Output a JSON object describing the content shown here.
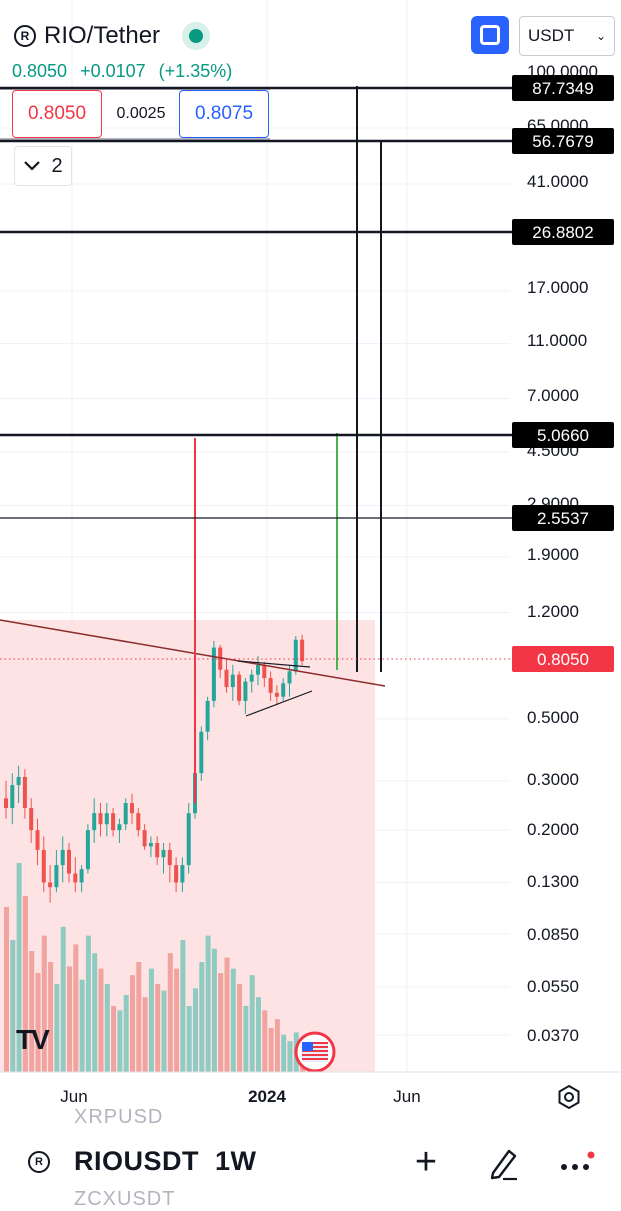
{
  "header": {
    "pair_title": "RIO/Tether",
    "last_price": "0.8050",
    "change": "+0.0107",
    "change_pct": "(+1.35%)",
    "currency": "USDT",
    "icons": {
      "coin": "rio-coin-icon",
      "live": "live-status-dot",
      "fullscreen": "fullscreen-icon",
      "dropdown": "chevron-down-icon"
    }
  },
  "order": {
    "sell_price": "0.8050",
    "spread": "0.0025",
    "buy_price": "0.8075",
    "collapse_count": "2"
  },
  "bottom": {
    "ghost_above": "XRPUSD",
    "symbol": "RIOUSDT",
    "interval": "1W",
    "ghost_below": "ZCXUSDT"
  },
  "colors": {
    "up": "#26a69a",
    "down": "#ef5350",
    "accent": "#2962ff",
    "shade": "#fde3e3",
    "price_label": "#f23645",
    "vol_up": "#8fcbc1",
    "vol_down": "#f0a39f"
  },
  "chart_data": {
    "type": "candlestick",
    "interval": "1W",
    "y_scale": "log",
    "y_ticks": [
      "65.0000",
      "41.0000",
      "17.0000",
      "11.0000",
      "7.0000",
      "4.5000",
      "2.9000",
      "1.9000",
      "1.2000",
      "0.5000",
      "0.3000",
      "0.2000",
      "0.1300",
      "0.0850",
      "0.0550",
      "0.0370"
    ],
    "y_tick_values": [
      65,
      41,
      17,
      11,
      7,
      4.5,
      2.9,
      1.9,
      1.2,
      0.5,
      0.3,
      0.2,
      0.13,
      0.085,
      0.055,
      0.037
    ],
    "top_partial_tick": "100.0000",
    "x_ticks": [
      "Jun",
      "2024",
      "Jun"
    ],
    "level_labels": [
      "87.7349",
      "56.7679",
      "26.8802",
      "5.0660",
      "2.5537"
    ],
    "level_values": [
      87.7349,
      56.7679,
      26.8802,
      5.066,
      2.5537
    ],
    "current_price_label": "0.8050",
    "current_price": 0.805,
    "candles": [
      [
        0.26,
        0.3,
        0.22,
        0.24
      ],
      [
        0.24,
        0.32,
        0.21,
        0.29
      ],
      [
        0.29,
        0.34,
        0.25,
        0.31
      ],
      [
        0.31,
        0.33,
        0.22,
        0.24
      ],
      [
        0.24,
        0.26,
        0.18,
        0.2
      ],
      [
        0.2,
        0.22,
        0.15,
        0.17
      ],
      [
        0.17,
        0.19,
        0.12,
        0.13
      ],
      [
        0.13,
        0.15,
        0.11,
        0.125
      ],
      [
        0.125,
        0.17,
        0.12,
        0.15
      ],
      [
        0.15,
        0.19,
        0.13,
        0.17
      ],
      [
        0.17,
        0.18,
        0.13,
        0.14
      ],
      [
        0.14,
        0.16,
        0.12,
        0.13
      ],
      [
        0.13,
        0.15,
        0.12,
        0.145
      ],
      [
        0.145,
        0.21,
        0.14,
        0.2
      ],
      [
        0.2,
        0.26,
        0.18,
        0.23
      ],
      [
        0.23,
        0.25,
        0.19,
        0.21
      ],
      [
        0.21,
        0.25,
        0.19,
        0.23
      ],
      [
        0.23,
        0.24,
        0.19,
        0.2
      ],
      [
        0.2,
        0.22,
        0.18,
        0.21
      ],
      [
        0.21,
        0.26,
        0.2,
        0.25
      ],
      [
        0.25,
        0.27,
        0.21,
        0.23
      ],
      [
        0.23,
        0.24,
        0.19,
        0.2
      ],
      [
        0.2,
        0.21,
        0.17,
        0.175
      ],
      [
        0.175,
        0.19,
        0.16,
        0.18
      ],
      [
        0.18,
        0.19,
        0.15,
        0.16
      ],
      [
        0.16,
        0.18,
        0.14,
        0.17
      ],
      [
        0.17,
        0.18,
        0.13,
        0.15
      ],
      [
        0.15,
        0.16,
        0.12,
        0.13
      ],
      [
        0.13,
        0.16,
        0.12,
        0.15
      ],
      [
        0.15,
        0.25,
        0.14,
        0.23
      ],
      [
        0.23,
        0.33,
        0.22,
        0.32
      ],
      [
        0.32,
        0.47,
        0.3,
        0.45
      ],
      [
        0.45,
        0.6,
        0.42,
        0.58
      ],
      [
        0.58,
        0.95,
        0.55,
        0.9
      ],
      [
        0.9,
        0.92,
        0.7,
        0.75
      ],
      [
        0.75,
        0.82,
        0.62,
        0.65
      ],
      [
        0.65,
        0.78,
        0.58,
        0.72
      ],
      [
        0.72,
        0.74,
        0.56,
        0.58
      ],
      [
        0.58,
        0.7,
        0.52,
        0.68
      ],
      [
        0.68,
        0.75,
        0.62,
        0.72
      ],
      [
        0.72,
        0.84,
        0.66,
        0.78
      ],
      [
        0.78,
        0.8,
        0.65,
        0.7
      ],
      [
        0.7,
        0.74,
        0.58,
        0.62
      ],
      [
        0.62,
        0.66,
        0.56,
        0.6
      ],
      [
        0.6,
        0.7,
        0.58,
        0.67
      ],
      [
        0.67,
        0.78,
        0.6,
        0.74
      ],
      [
        0.74,
        0.99,
        0.72,
        0.96
      ],
      [
        0.96,
        1.0,
        0.78,
        0.805
      ]
    ],
    "volume_relative": [
      0.75,
      0.6,
      0.95,
      0.8,
      0.55,
      0.45,
      0.62,
      0.5,
      0.4,
      0.66,
      0.48,
      0.58,
      0.42,
      0.62,
      0.54,
      0.47,
      0.4,
      0.3,
      0.28,
      0.35,
      0.44,
      0.5,
      0.34,
      0.47,
      0.4,
      0.37,
      0.54,
      0.47,
      0.6,
      0.3,
      0.38,
      0.5,
      0.62,
      0.56,
      0.45,
      0.52,
      0.47,
      0.4,
      0.3,
      0.44,
      0.34,
      0.28,
      0.2,
      0.24,
      0.17,
      0.14,
      0.18,
      0.12
    ]
  }
}
